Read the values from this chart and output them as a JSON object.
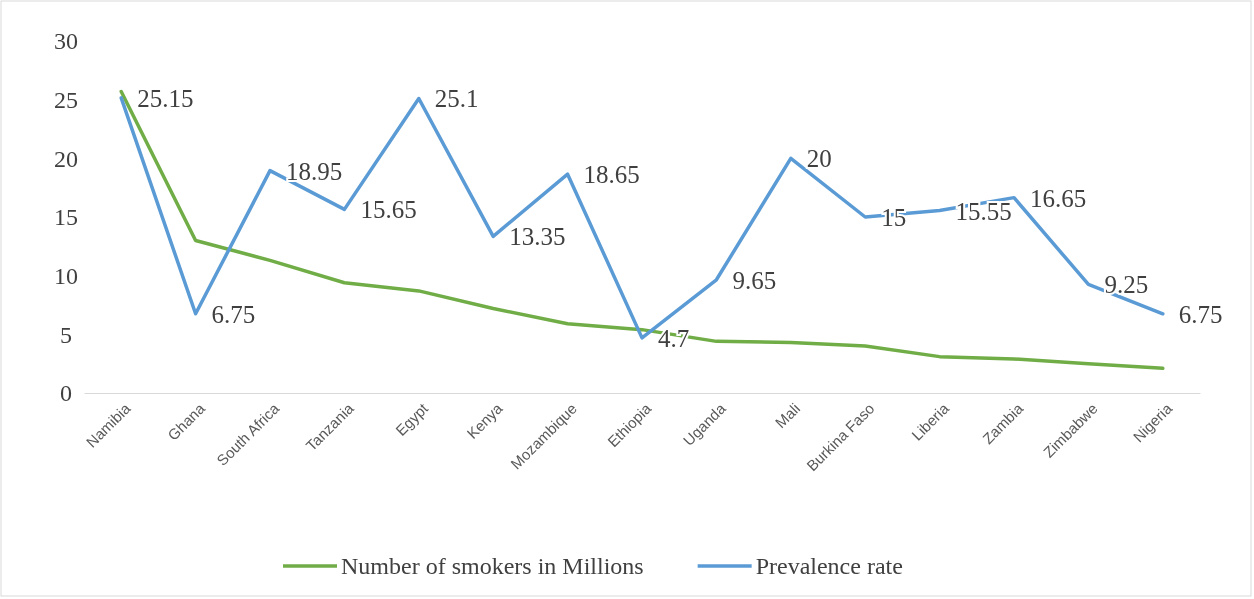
{
  "chart_data": {
    "type": "line",
    "categories": [
      "Namibia",
      "Ghana",
      "South Africa",
      "Tanzania",
      "Egypt",
      "Kenya",
      "Mozambique",
      "Ethiopia",
      "Uganda",
      "Mali",
      "Burkina Faso",
      "Liberia",
      "Zambia",
      "Zimbabwe",
      "Nigeria"
    ],
    "series": [
      {
        "name": "Number of smokers in Millions",
        "color": "#70ad47",
        "values": [
          25.7,
          13.0,
          11.3,
          9.4,
          8.7,
          7.2,
          5.9,
          5.4,
          4.4,
          4.3,
          4.0,
          3.1,
          2.9,
          2.5,
          2.1
        ]
      },
      {
        "name": "Prevalence rate",
        "color": "#5b9bd5",
        "values": [
          25.15,
          6.75,
          18.95,
          15.65,
          25.1,
          13.35,
          18.65,
          4.7,
          9.65,
          20,
          15,
          15.55,
          16.65,
          9.25,
          6.75
        ],
        "value_labels": [
          "25.15",
          "6.75",
          "18.95",
          "15.65",
          "25.1",
          "13.35",
          "18.65",
          "4.7",
          "9.65",
          "20",
          "15",
          "15.55",
          "16.65",
          "9.25",
          "6.75"
        ]
      }
    ],
    "ylim": [
      0,
      30
    ],
    "yticks": [
      0,
      5,
      10,
      15,
      20,
      25,
      30
    ],
    "grid": false,
    "legend": "bottom",
    "marker": "none",
    "line_style": "solid"
  }
}
